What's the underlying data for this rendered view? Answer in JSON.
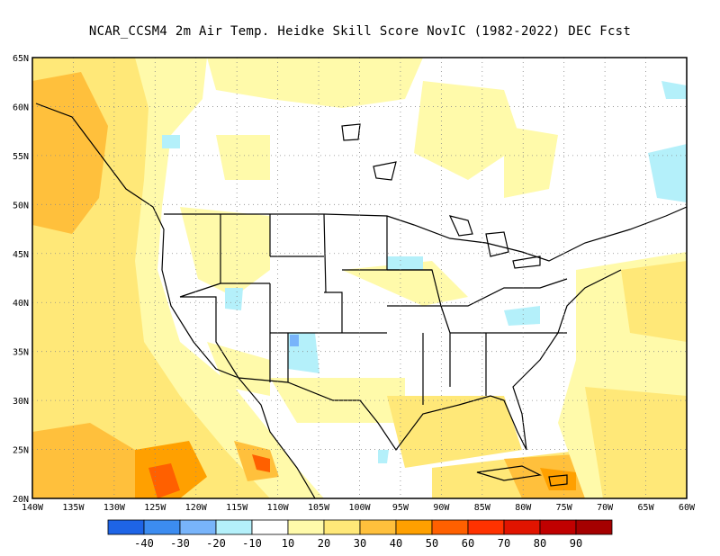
{
  "title": "NCAR_CCSM4  2m Air Temp. Heidke Skill Score NovIC (1982-2022) DEC Fcst",
  "map": {
    "lon_range": [
      -140,
      -60
    ],
    "lat_range": [
      20,
      65
    ],
    "x_ticks": [
      "140W",
      "135W",
      "130W",
      "125W",
      "120W",
      "115W",
      "110W",
      "105W",
      "100W",
      "95W",
      "90W",
      "85W",
      "80W",
      "75W",
      "70W",
      "65W",
      "60W"
    ],
    "y_ticks": [
      "20N",
      "25N",
      "30N",
      "35N",
      "40N",
      "45N",
      "50N",
      "55N",
      "60N",
      "65N"
    ],
    "grid": "dotted"
  },
  "colorbar": {
    "bins": [
      {
        "color": "#1e64e6"
      },
      {
        "color": "#3c8cf0"
      },
      {
        "color": "#78b4fa"
      },
      {
        "color": "#b4f0fa"
      },
      {
        "color": "#ffffff"
      },
      {
        "color": "#fffaaa"
      },
      {
        "color": "#ffe878"
      },
      {
        "color": "#ffc03c"
      },
      {
        "color": "#ffa000"
      },
      {
        "color": "#ff6000"
      },
      {
        "color": "#ff3200"
      },
      {
        "color": "#e11400"
      },
      {
        "color": "#c00000"
      },
      {
        "color": "#a50000"
      }
    ],
    "labels": [
      "-40",
      "-30",
      "-20",
      "-10",
      "10",
      "20",
      "30",
      "40",
      "50",
      "60",
      "70",
      "80",
      "90"
    ]
  }
}
